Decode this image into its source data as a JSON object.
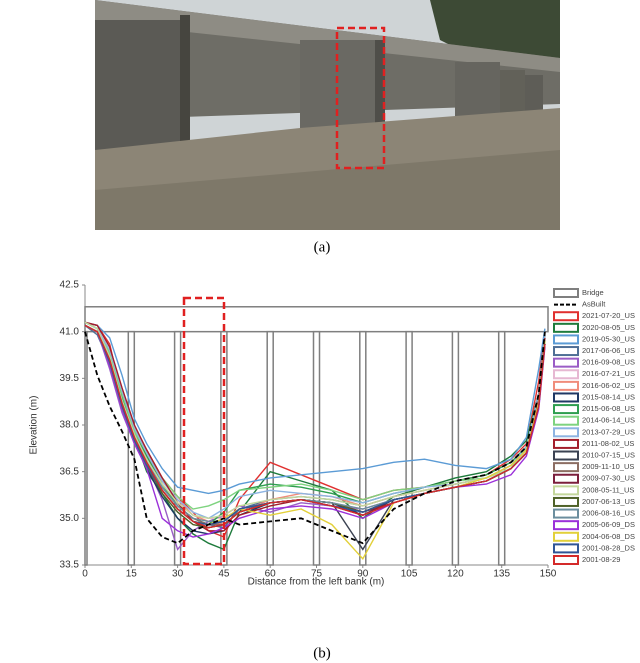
{
  "figure": {
    "caption_a": "(a)",
    "caption_b": "(b)"
  },
  "chart_data": {
    "type": "line",
    "xlabel": "Distance from the left bank (m)",
    "ylabel": "Elevation (m)",
    "xlim": [
      0,
      150
    ],
    "ylim": [
      33.5,
      42.5
    ],
    "xticks": [
      0,
      15,
      30,
      45,
      60,
      75,
      90,
      105,
      120,
      135,
      150
    ],
    "yticks": [
      33.5,
      {
        "value": 35,
        "label": "35.0"
      },
      36.5,
      {
        "value": 38,
        "label": "38.0"
      },
      39.5,
      {
        "value": 41,
        "label": "41.0"
      },
      42.5
    ],
    "bridge": {
      "name": "Bridge",
      "color": "#7f7f7f",
      "deck": [
        41.0,
        41.8
      ],
      "piers": [
        0,
        15,
        30,
        45,
        60,
        75,
        90,
        105,
        120,
        135
      ]
    },
    "asbuilt": {
      "name": "AsBuilt",
      "color": "#000000",
      "values": [
        41.0,
        39.6,
        38.6,
        37.8,
        36.9,
        35.0,
        34.4,
        34.2,
        34.6,
        34.8,
        35.0,
        34.8,
        34.9,
        35.0,
        34.6,
        34.2,
        35.3,
        35.8,
        36.2,
        36.4,
        36.8,
        37.3,
        39.0,
        41.0
      ]
    },
    "x": [
      0,
      4,
      8,
      12,
      16,
      20,
      25,
      30,
      35,
      40,
      45,
      50,
      60,
      70,
      80,
      90,
      100,
      110,
      120,
      130,
      138,
      143,
      147,
      149
    ],
    "series": [
      {
        "name": "2021-07-20_US",
        "color": "#e0302f",
        "values": [
          41.3,
          41.2,
          40.6,
          38.9,
          37.9,
          37.2,
          36.3,
          35.7,
          35.2,
          34.6,
          34.4,
          35.6,
          36.8,
          36.4,
          36.0,
          35.6,
          35.9,
          36.0,
          36.2,
          36.4,
          36.9,
          37.4,
          39.4,
          41.0
        ]
      },
      {
        "name": "2020-08-05_US",
        "color": "#1e7b3c",
        "values": [
          41.3,
          41.1,
          40.3,
          39.0,
          37.6,
          36.5,
          35.8,
          35.0,
          34.5,
          34.2,
          34.0,
          35.2,
          36.5,
          36.2,
          35.9,
          35.0,
          35.7,
          36.0,
          36.3,
          36.5,
          37.0,
          37.5,
          39.0,
          40.9
        ]
      },
      {
        "name": "2019-05-30_US",
        "color": "#5b9bd5",
        "values": [
          41.3,
          41.2,
          40.8,
          39.6,
          38.2,
          37.4,
          36.6,
          36.0,
          35.9,
          35.8,
          35.9,
          36.1,
          36.3,
          36.4,
          36.5,
          36.6,
          36.8,
          36.9,
          36.7,
          36.6,
          36.9,
          37.6,
          39.8,
          41.1
        ]
      },
      {
        "name": "2017-06-06_US",
        "color": "#4f6f96",
        "values": [
          41.2,
          40.9,
          40.0,
          38.6,
          37.5,
          36.8,
          36.0,
          35.4,
          35.0,
          34.8,
          34.7,
          35.3,
          35.6,
          35.7,
          35.6,
          35.4,
          35.7,
          35.9,
          36.1,
          36.3,
          36.7,
          37.2,
          38.7,
          40.7
        ]
      },
      {
        "name": "2016-09-08_US",
        "color": "#9a5cc6",
        "values": [
          41.2,
          41.0,
          39.8,
          38.4,
          37.4,
          36.7,
          35.6,
          34.0,
          34.6,
          34.9,
          35.1,
          35.4,
          35.2,
          35.5,
          35.4,
          35.3,
          35.6,
          35.8,
          36.0,
          36.2,
          36.6,
          37.1,
          38.6,
          40.6
        ]
      },
      {
        "name": "2016-07-21_US",
        "color": "#e6b8d2",
        "values": [
          41.2,
          41.0,
          40.1,
          38.7,
          37.6,
          36.9,
          36.1,
          35.5,
          35.1,
          35.0,
          35.0,
          35.3,
          35.5,
          35.6,
          35.5,
          35.3,
          35.6,
          35.8,
          36.0,
          36.2,
          36.6,
          37.2,
          38.7,
          40.7
        ]
      },
      {
        "name": "2016-06-02_US",
        "color": "#f08c7a",
        "values": [
          41.3,
          41.1,
          40.2,
          38.8,
          37.7,
          37.0,
          36.2,
          35.6,
          35.1,
          34.9,
          34.8,
          35.2,
          35.6,
          35.8,
          35.7,
          35.4,
          35.7,
          35.9,
          36.1,
          36.3,
          36.7,
          37.2,
          38.8,
          40.8
        ]
      },
      {
        "name": "2015-08-14_US",
        "color": "#1f3864",
        "values": [
          41.2,
          41.0,
          40.0,
          38.6,
          37.5,
          36.6,
          35.7,
          35.0,
          34.6,
          34.5,
          34.6,
          35.1,
          35.5,
          35.6,
          35.5,
          35.1,
          35.6,
          35.8,
          36.0,
          36.2,
          36.6,
          37.1,
          38.6,
          40.6
        ]
      },
      {
        "name": "2015-06-08_US",
        "color": "#2e9e4f",
        "values": [
          41.3,
          41.1,
          40.2,
          38.9,
          37.8,
          37.0,
          36.1,
          35.4,
          35.0,
          34.8,
          35.2,
          35.9,
          36.1,
          36.0,
          35.8,
          35.5,
          35.8,
          36.0,
          36.2,
          36.4,
          36.8,
          37.3,
          38.9,
          40.8
        ]
      },
      {
        "name": "2014-06-14_US",
        "color": "#7ed37f",
        "values": [
          41.3,
          41.1,
          40.3,
          39.0,
          37.8,
          37.1,
          36.3,
          35.7,
          35.3,
          35.4,
          35.6,
          35.9,
          36.0,
          36.1,
          35.9,
          35.6,
          35.9,
          36.0,
          36.2,
          36.3,
          36.6,
          37.3,
          38.9,
          40.8
        ]
      },
      {
        "name": "2013-07-29_US",
        "color": "#8db4e2",
        "values": [
          41.3,
          41.1,
          40.4,
          39.1,
          37.9,
          37.1,
          36.2,
          35.6,
          35.2,
          35.0,
          35.3,
          35.7,
          35.9,
          35.8,
          35.7,
          35.5,
          35.8,
          36.0,
          36.1,
          36.3,
          36.7,
          37.3,
          39.0,
          40.9
        ]
      },
      {
        "name": "2011-08-02_US",
        "color": "#a31d2b",
        "values": [
          41.3,
          41.2,
          40.5,
          39.2,
          38.0,
          37.2,
          36.3,
          35.5,
          34.9,
          34.6,
          34.6,
          35.1,
          35.4,
          35.6,
          35.5,
          35.2,
          35.5,
          35.8,
          36.0,
          36.2,
          36.6,
          37.1,
          38.8,
          40.8
        ]
      },
      {
        "name": "2010-07-15_US",
        "color": "#3b4252",
        "values": [
          41.2,
          41.0,
          40.0,
          38.6,
          37.6,
          36.8,
          35.9,
          35.3,
          34.9,
          34.8,
          34.9,
          35.3,
          35.5,
          35.6,
          35.5,
          34.0,
          35.6,
          35.8,
          36.0,
          36.2,
          36.6,
          37.1,
          38.6,
          40.6
        ]
      },
      {
        "name": "2009-11-10_US",
        "color": "#8c6d62",
        "values": [
          41.2,
          41.0,
          40.1,
          38.7,
          37.6,
          36.8,
          36.0,
          35.4,
          35.0,
          34.8,
          34.8,
          35.2,
          35.5,
          35.6,
          35.5,
          35.2,
          35.6,
          35.8,
          36.0,
          36.2,
          36.6,
          37.1,
          38.6,
          40.6
        ]
      },
      {
        "name": "2009-07-30_US",
        "color": "#7b1e3c",
        "values": [
          41.2,
          41.0,
          40.0,
          38.6,
          37.5,
          36.7,
          35.9,
          35.3,
          34.9,
          34.7,
          34.8,
          35.2,
          35.5,
          35.6,
          35.4,
          35.1,
          35.5,
          35.8,
          36.0,
          36.2,
          36.6,
          37.1,
          38.6,
          40.6
        ]
      },
      {
        "name": "2008-05-11_US",
        "color": "#c4d79b",
        "values": [
          41.3,
          41.1,
          40.2,
          38.8,
          37.7,
          36.9,
          36.1,
          35.5,
          35.1,
          35.0,
          35.1,
          35.4,
          35.6,
          35.7,
          35.6,
          35.4,
          35.7,
          35.9,
          36.1,
          36.3,
          36.6,
          37.2,
          38.7,
          40.7
        ]
      },
      {
        "name": "2007-06-13_US",
        "color": "#4f6228",
        "values": [
          41.2,
          41.0,
          40.0,
          38.6,
          37.5,
          36.7,
          35.8,
          35.2,
          34.8,
          34.7,
          34.8,
          35.2,
          35.5,
          35.6,
          35.5,
          35.2,
          35.6,
          35.8,
          36.0,
          36.2,
          36.6,
          37.1,
          38.6,
          40.6
        ]
      },
      {
        "name": "2006-08-16_US",
        "color": "#6b8e9e",
        "values": [
          41.2,
          41.0,
          40.1,
          38.7,
          37.6,
          36.8,
          36.0,
          35.4,
          35.0,
          34.9,
          34.9,
          35.3,
          35.5,
          35.6,
          35.5,
          35.3,
          35.6,
          35.8,
          36.0,
          36.2,
          36.6,
          37.1,
          38.7,
          40.7
        ]
      },
      {
        "name": "2005-06-09_DS",
        "color": "#9b30d9",
        "values": [
          41.2,
          41.0,
          39.9,
          38.5,
          37.4,
          36.6,
          35.0,
          34.6,
          34.4,
          34.5,
          34.7,
          35.0,
          35.3,
          35.4,
          35.3,
          35.0,
          35.5,
          35.8,
          36.0,
          36.1,
          36.4,
          37.0,
          38.5,
          40.5
        ]
      },
      {
        "name": "2004-06-08_DS",
        "color": "#e2d03a",
        "values": [
          41.2,
          41.0,
          40.0,
          38.6,
          37.5,
          36.7,
          35.9,
          35.3,
          34.9,
          34.8,
          35.0,
          35.3,
          35.1,
          35.3,
          34.8,
          33.7,
          35.5,
          35.8,
          36.0,
          36.3,
          36.7,
          37.2,
          38.7,
          40.7
        ]
      },
      {
        "name": "2001-08-28_DS",
        "color": "#2f5597",
        "values": [
          41.2,
          41.0,
          40.0,
          38.6,
          37.5,
          36.7,
          35.9,
          35.3,
          34.9,
          34.8,
          34.9,
          35.3,
          35.5,
          35.6,
          35.4,
          35.2,
          35.6,
          35.8,
          36.0,
          36.2,
          36.6,
          37.1,
          38.6,
          40.6
        ]
      },
      {
        "name": "2001-08-29",
        "color": "#d42a2a",
        "values": [
          41.2,
          41.0,
          40.1,
          38.7,
          37.6,
          36.8,
          35.9,
          35.3,
          34.9,
          34.7,
          34.8,
          35.2,
          35.5,
          35.6,
          35.4,
          35.1,
          35.5,
          35.8,
          36.0,
          36.2,
          36.6,
          37.1,
          38.6,
          40.6
        ]
      }
    ]
  }
}
